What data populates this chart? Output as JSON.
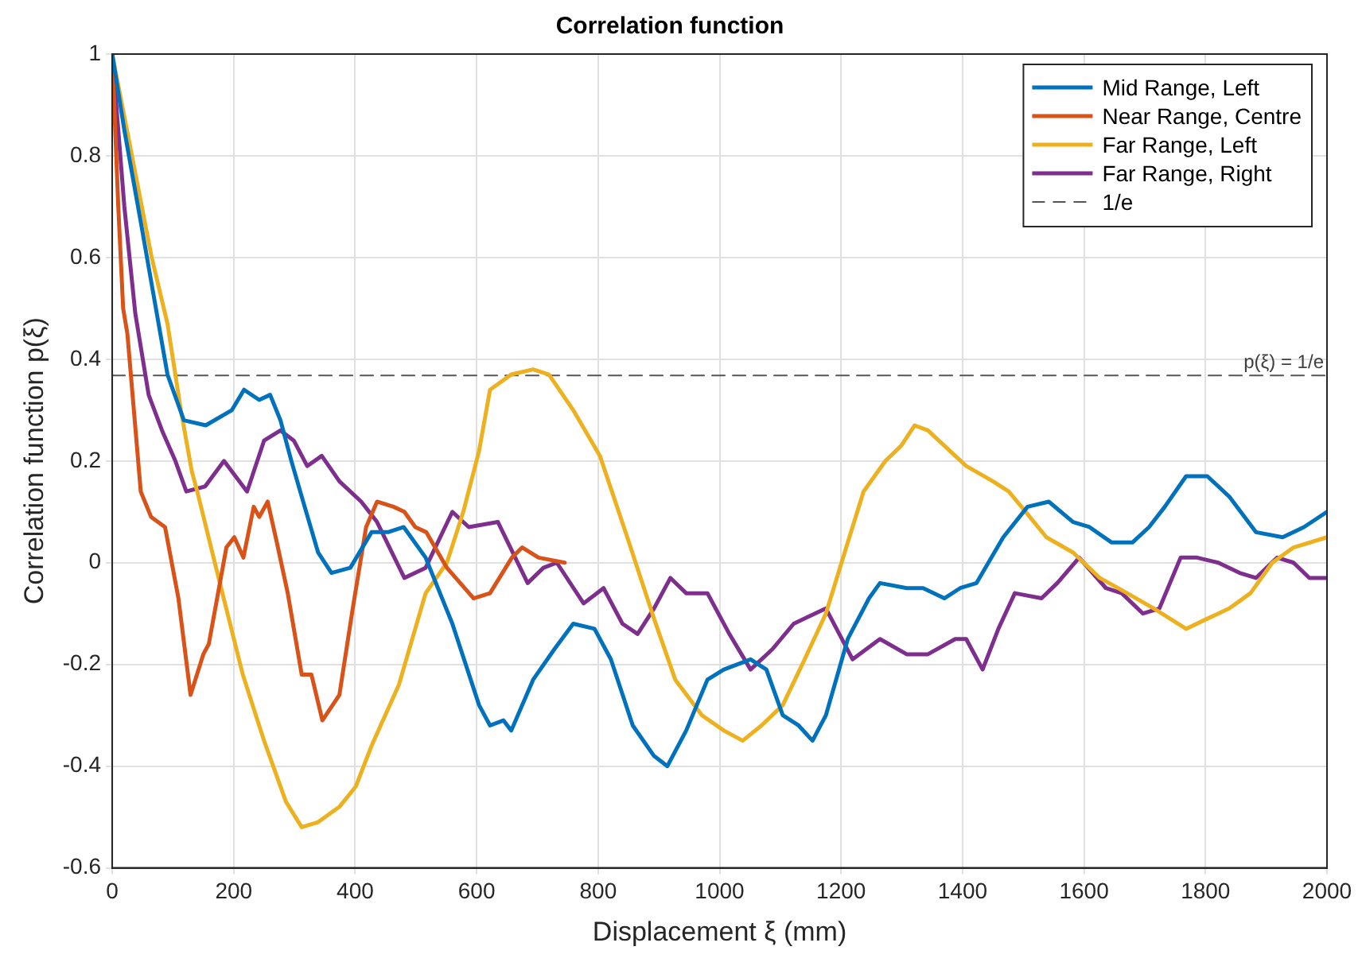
{
  "chart_data": {
    "type": "line",
    "title": "Correlation function",
    "xlabel": "Displacement ξ (mm)",
    "ylabel": "Correlation function p(ξ)",
    "xlim": [
      0,
      2000
    ],
    "xticks": [
      0,
      200,
      400,
      600,
      800,
      1000,
      1200,
      1400,
      1600,
      1800,
      2000
    ],
    "ylim": [
      -0.6,
      1
    ],
    "yticks": [
      -0.6,
      -0.4,
      -0.2,
      0,
      0.2,
      0.4,
      0.6,
      0.8,
      1
    ],
    "grid": true,
    "legend": "top right",
    "marker": "none",
    "annotations": [
      {
        "text": "p(ξ) = 1/e",
        "x": 2000,
        "y": 0.368
      }
    ],
    "series": [
      {
        "name": "Mid Range, Left",
        "color": "#0072bd",
        "x": [
          0,
          20,
          47,
          69,
          91,
          118,
          154,
          197,
          217,
          242,
          260,
          277,
          295,
          312,
          339,
          361,
          392,
          427,
          454,
          480,
          516,
          560,
          604,
          622,
          644,
          657,
          693,
          728,
          759,
          794,
          821,
          857,
          892,
          914,
          945,
          980,
          1007,
          1051,
          1077,
          1104,
          1130,
          1153,
          1175,
          1211,
          1246,
          1264,
          1308,
          1335,
          1370,
          1396,
          1423,
          1467,
          1507,
          1542,
          1582,
          1609,
          1645,
          1680,
          1707,
          1733,
          1768,
          1803,
          1839,
          1883,
          1927,
          1962,
          2000
        ],
        "values": [
          1,
          0.85,
          0.67,
          0.52,
          0.37,
          0.28,
          0.27,
          0.3,
          0.34,
          0.32,
          0.33,
          0.28,
          0.2,
          0.13,
          0.02,
          -0.02,
          -0.01,
          0.06,
          0.06,
          0.07,
          0.01,
          -0.12,
          -0.28,
          -0.32,
          -0.31,
          -0.33,
          -0.23,
          -0.17,
          -0.12,
          -0.13,
          -0.19,
          -0.32,
          -0.38,
          -0.4,
          -0.33,
          -0.23,
          -0.21,
          -0.19,
          -0.21,
          -0.3,
          -0.32,
          -0.35,
          -0.3,
          -0.15,
          -0.07,
          -0.04,
          -0.05,
          -0.05,
          -0.07,
          -0.05,
          -0.04,
          0.05,
          0.11,
          0.12,
          0.08,
          0.07,
          0.04,
          0.04,
          0.07,
          0.11,
          0.17,
          0.17,
          0.13,
          0.06,
          0.05,
          0.07,
          0.1
        ]
      },
      {
        "name": "Near Range, Centre",
        "color": "#d95319",
        "x": [
          0,
          10,
          18,
          25,
          47,
          64,
          87,
          109,
          129,
          150,
          159,
          188,
          201,
          216,
          233,
          242,
          256,
          271,
          289,
          312,
          328,
          346,
          374,
          396,
          418,
          436,
          463,
          481,
          499,
          517,
          551,
          595,
          622,
          658,
          675,
          702,
          745
        ],
        "values": [
          1,
          0.7,
          0.5,
          0.45,
          0.14,
          0.09,
          0.07,
          -0.07,
          -0.26,
          -0.18,
          -0.16,
          0.03,
          0.05,
          0.01,
          0.11,
          0.09,
          0.12,
          0.04,
          -0.06,
          -0.22,
          -0.22,
          -0.31,
          -0.26,
          -0.09,
          0.07,
          0.12,
          0.11,
          0.1,
          0.07,
          0.06,
          -0.01,
          -0.07,
          -0.06,
          0.01,
          0.03,
          0.01,
          0
        ]
      },
      {
        "name": "Far Range, Left",
        "color": "#edb120",
        "x": [
          0,
          65,
          91,
          113,
          131,
          140,
          171,
          215,
          250,
          286,
          312,
          339,
          374,
          401,
          427,
          472,
          516,
          551,
          578,
          604,
          622,
          657,
          693,
          719,
          759,
          803,
          848,
          892,
          927,
          971,
          1007,
          1038,
          1069,
          1104,
          1140,
          1175,
          1211,
          1237,
          1273,
          1299,
          1321,
          1343,
          1370,
          1406,
          1450,
          1476,
          1504,
          1538,
          1582,
          1626,
          1671,
          1715,
          1768,
          1803,
          1839,
          1874,
          1910,
          1945,
          2000
        ],
        "values": [
          1,
          0.6,
          0.47,
          0.3,
          0.18,
          0.14,
          -0.01,
          -0.22,
          -0.35,
          -0.47,
          -0.52,
          -0.51,
          -0.48,
          -0.44,
          -0.36,
          -0.24,
          -0.06,
          0,
          0.1,
          0.22,
          0.34,
          0.37,
          0.38,
          0.37,
          0.3,
          0.21,
          0.05,
          -0.11,
          -0.23,
          -0.3,
          -0.33,
          -0.35,
          -0.32,
          -0.28,
          -0.19,
          -0.1,
          0.04,
          0.14,
          0.2,
          0.23,
          0.27,
          0.26,
          0.23,
          0.19,
          0.16,
          0.14,
          0.1,
          0.05,
          0.02,
          -0.03,
          -0.06,
          -0.09,
          -0.13,
          -0.11,
          -0.09,
          -0.06,
          0,
          0.03,
          0.05
        ]
      },
      {
        "name": "Far Range, Right",
        "color": "#7e2f8e",
        "x": [
          0,
          20,
          38,
          60,
          82,
          104,
          122,
          153,
          184,
          222,
          250,
          277,
          299,
          321,
          345,
          374,
          410,
          436,
          481,
          516,
          560,
          587,
          635,
          684,
          710,
          732,
          776,
          809,
          840,
          865,
          892,
          919,
          945,
          980,
          1016,
          1051,
          1087,
          1122,
          1157,
          1175,
          1197,
          1219,
          1264,
          1308,
          1343,
          1388,
          1406,
          1433,
          1459,
          1486,
          1530,
          1556,
          1592,
          1636,
          1662,
          1697,
          1724,
          1759,
          1786,
          1821,
          1856,
          1883,
          1918,
          1945,
          1971,
          2000
        ],
        "values": [
          1,
          0.7,
          0.49,
          0.33,
          0.26,
          0.2,
          0.14,
          0.15,
          0.2,
          0.14,
          0.24,
          0.26,
          0.24,
          0.19,
          0.21,
          0.16,
          0.12,
          0.08,
          -0.03,
          -0.01,
          0.1,
          0.07,
          0.08,
          -0.04,
          -0.01,
          0,
          -0.08,
          -0.05,
          -0.12,
          -0.14,
          -0.09,
          -0.03,
          -0.06,
          -0.06,
          -0.14,
          -0.21,
          -0.17,
          -0.12,
          -0.1,
          -0.09,
          -0.14,
          -0.19,
          -0.15,
          -0.18,
          -0.18,
          -0.15,
          -0.15,
          -0.21,
          -0.13,
          -0.06,
          -0.07,
          -0.04,
          0.01,
          -0.05,
          -0.06,
          -0.1,
          -0.09,
          0.01,
          0.01,
          0,
          -0.02,
          -0.03,
          0.01,
          0,
          -0.03,
          -0.03
        ]
      },
      {
        "name": "1/e",
        "color": "#555555",
        "line_style": "dashed",
        "x": [
          0,
          2000
        ],
        "values": [
          0.368,
          0.368
        ]
      }
    ]
  }
}
